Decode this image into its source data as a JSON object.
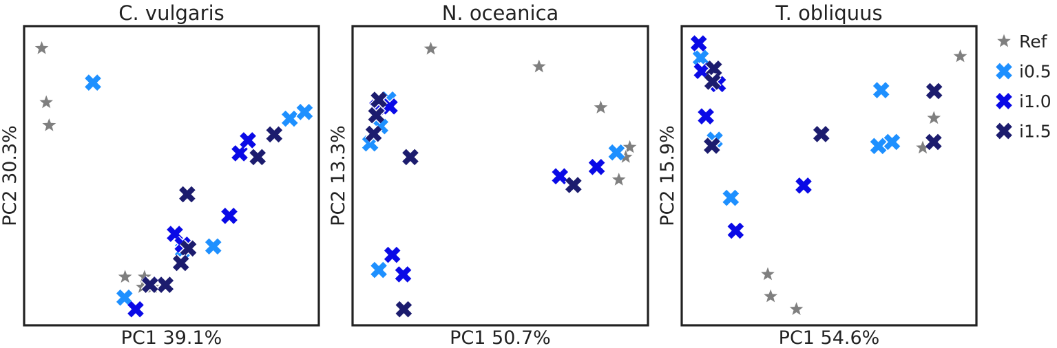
{
  "legend": {
    "placement": "right",
    "entries": [
      {
        "name": "Ref",
        "marker": "star",
        "color": "#7f7f7f"
      },
      {
        "name": "i0.5",
        "marker": "cross",
        "color": "#1e90ff"
      },
      {
        "name": "i1.0",
        "marker": "cross",
        "color": "#0a0ae6"
      },
      {
        "name": "i1.5",
        "marker": "cross",
        "color": "#1c1c6e"
      }
    ]
  },
  "chart_data": [
    {
      "type": "scatter",
      "title": "C. vulgaris",
      "xlabel": "PC1 39.1%",
      "ylabel": "PC2 30.3%",
      "xlim": [
        0,
        100
      ],
      "ylim": [
        0,
        100
      ],
      "grid": false,
      "series": [
        {
          "name": "Ref",
          "points": [
            [
              4.7,
              93.8
            ],
            [
              6.3,
              75.2
            ],
            [
              7.3,
              67.3
            ],
            [
              33.8,
              15.2
            ],
            [
              40.6,
              15.2
            ],
            [
              43.4,
              11.7
            ],
            [
              39.9,
              11.7
            ]
          ]
        },
        {
          "name": "i0.5",
          "points": [
            [
              22.6,
              82.0
            ],
            [
              33.6,
              8.1
            ],
            [
              54.0,
              24.5
            ],
            [
              64.6,
              25.7
            ],
            [
              91.3,
              69.6
            ],
            [
              96.5,
              71.9
            ]
          ]
        },
        {
          "name": "i1.0",
          "points": [
            [
              37.5,
              4.1
            ],
            [
              51.2,
              30.0
            ],
            [
              70.2,
              36.2
            ],
            [
              73.8,
              57.7
            ],
            [
              76.7,
              62.2
            ],
            [
              42.5,
              12.6
            ],
            [
              53.9,
              26.3
            ]
          ]
        },
        {
          "name": "i1.5",
          "points": [
            [
              55.5,
              43.6
            ],
            [
              85.9,
              64.2
            ],
            [
              80.1,
              56.4
            ],
            [
              55.9,
              25.0
            ],
            [
              53.3,
              20.0
            ],
            [
              47.9,
              12.5
            ],
            [
              42.5,
              12.5
            ]
          ]
        }
      ]
    },
    {
      "type": "scatter",
      "title": "N. oceanica",
      "xlabel": "PC1 50.7%",
      "ylabel": "PC2 13.3%",
      "xlim": [
        0,
        100
      ],
      "ylim": [
        0,
        100
      ],
      "grid": false,
      "series": [
        {
          "name": "Ref",
          "points": [
            [
              25.8,
              93.6
            ],
            [
              63.5,
              87.5
            ],
            [
              85.0,
              73.4
            ],
            [
              95.1,
              59.8
            ],
            [
              93.7,
              56.4
            ],
            [
              91.3,
              48.6
            ]
          ]
        },
        {
          "name": "i0.5",
          "points": [
            [
              4.7,
              61.1
            ],
            [
              8.2,
              67.0
            ],
            [
              7.7,
              75.7
            ],
            [
              11.0,
              76.2
            ],
            [
              7.7,
              17.6
            ],
            [
              90.5,
              58.0
            ]
          ]
        },
        {
          "name": "i1.0",
          "points": [
            [
              11.5,
              73.8
            ],
            [
              7.2,
              73.5
            ],
            [
              12.4,
              22.8
            ],
            [
              16.2,
              16.1
            ],
            [
              70.8,
              49.8
            ],
            [
              83.6,
              53.0
            ]
          ]
        },
        {
          "name": "i1.5",
          "points": [
            [
              7.7,
              76.1
            ],
            [
              6.8,
              70.8
            ],
            [
              5.9,
              64.4
            ],
            [
              18.7,
              56.4
            ],
            [
              75.5,
              46.8
            ],
            [
              16.4,
              4.1
            ]
          ]
        }
      ]
    },
    {
      "type": "scatter",
      "title": "T. obliquus",
      "xlabel": "PC1 54.6%",
      "ylabel": "PC2 15.9%",
      "xlim": [
        0,
        100
      ],
      "ylim": [
        0,
        100
      ],
      "grid": false,
      "series": [
        {
          "name": "Ref",
          "points": [
            [
              95.8,
              91.0
            ],
            [
              86.6,
              69.8
            ],
            [
              82.7,
              59.6
            ],
            [
              28.6,
              16.1
            ],
            [
              29.6,
              8.5
            ],
            [
              38.6,
              4.1
            ]
          ]
        },
        {
          "name": "i0.5",
          "points": [
            [
              5.2,
              90.5
            ],
            [
              10.1,
              62.4
            ],
            [
              15.7,
              42.4
            ],
            [
              68.2,
              79.4
            ],
            [
              67.2,
              60.2
            ],
            [
              72.0,
              61.6
            ]
          ]
        },
        {
          "name": "i1.0",
          "points": [
            [
              4.5,
              95.5
            ],
            [
              5.6,
              86.0
            ],
            [
              7.0,
              70.4
            ],
            [
              17.4,
              31.1
            ],
            [
              41.1,
              46.6
            ],
            [
              11.2,
              81.5
            ]
          ]
        },
        {
          "name": "i1.5",
          "points": [
            [
              9.8,
              86.8
            ],
            [
              9.3,
              82.3
            ],
            [
              9.1,
              60.3
            ],
            [
              47.3,
              64.3
            ],
            [
              86.5,
              61.6
            ],
            [
              86.7,
              79.1
            ]
          ]
        }
      ]
    }
  ]
}
